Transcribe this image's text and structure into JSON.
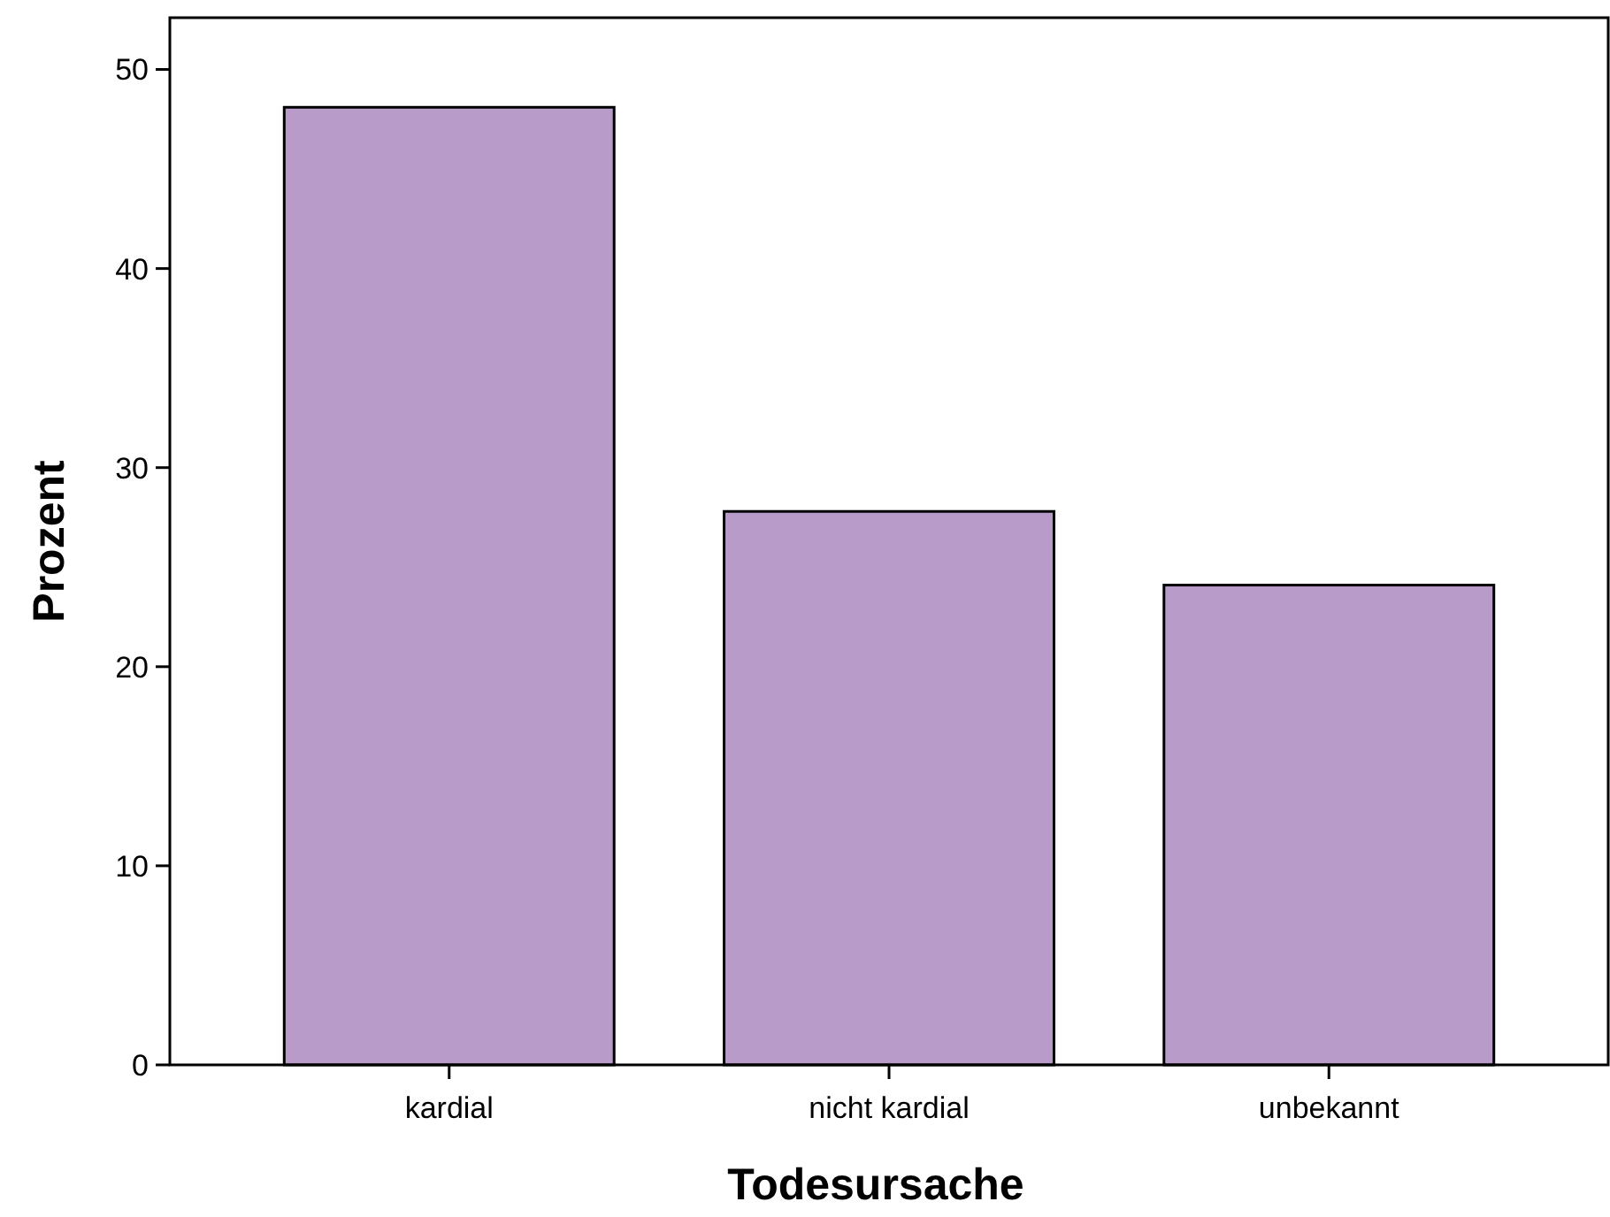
{
  "chart_data": {
    "type": "bar",
    "xlabel": "Todesursache",
    "ylabel": "Prozent",
    "categories": [
      "kardial",
      "nicht kardial",
      "unbekannt"
    ],
    "values": [
      48.1,
      27.8,
      24.1
    ],
    "color": "#b89bc9",
    "ylim": [
      0,
      52.6
    ],
    "yticks": [
      0,
      10,
      20,
      30,
      40,
      50
    ],
    "grid": false
  }
}
